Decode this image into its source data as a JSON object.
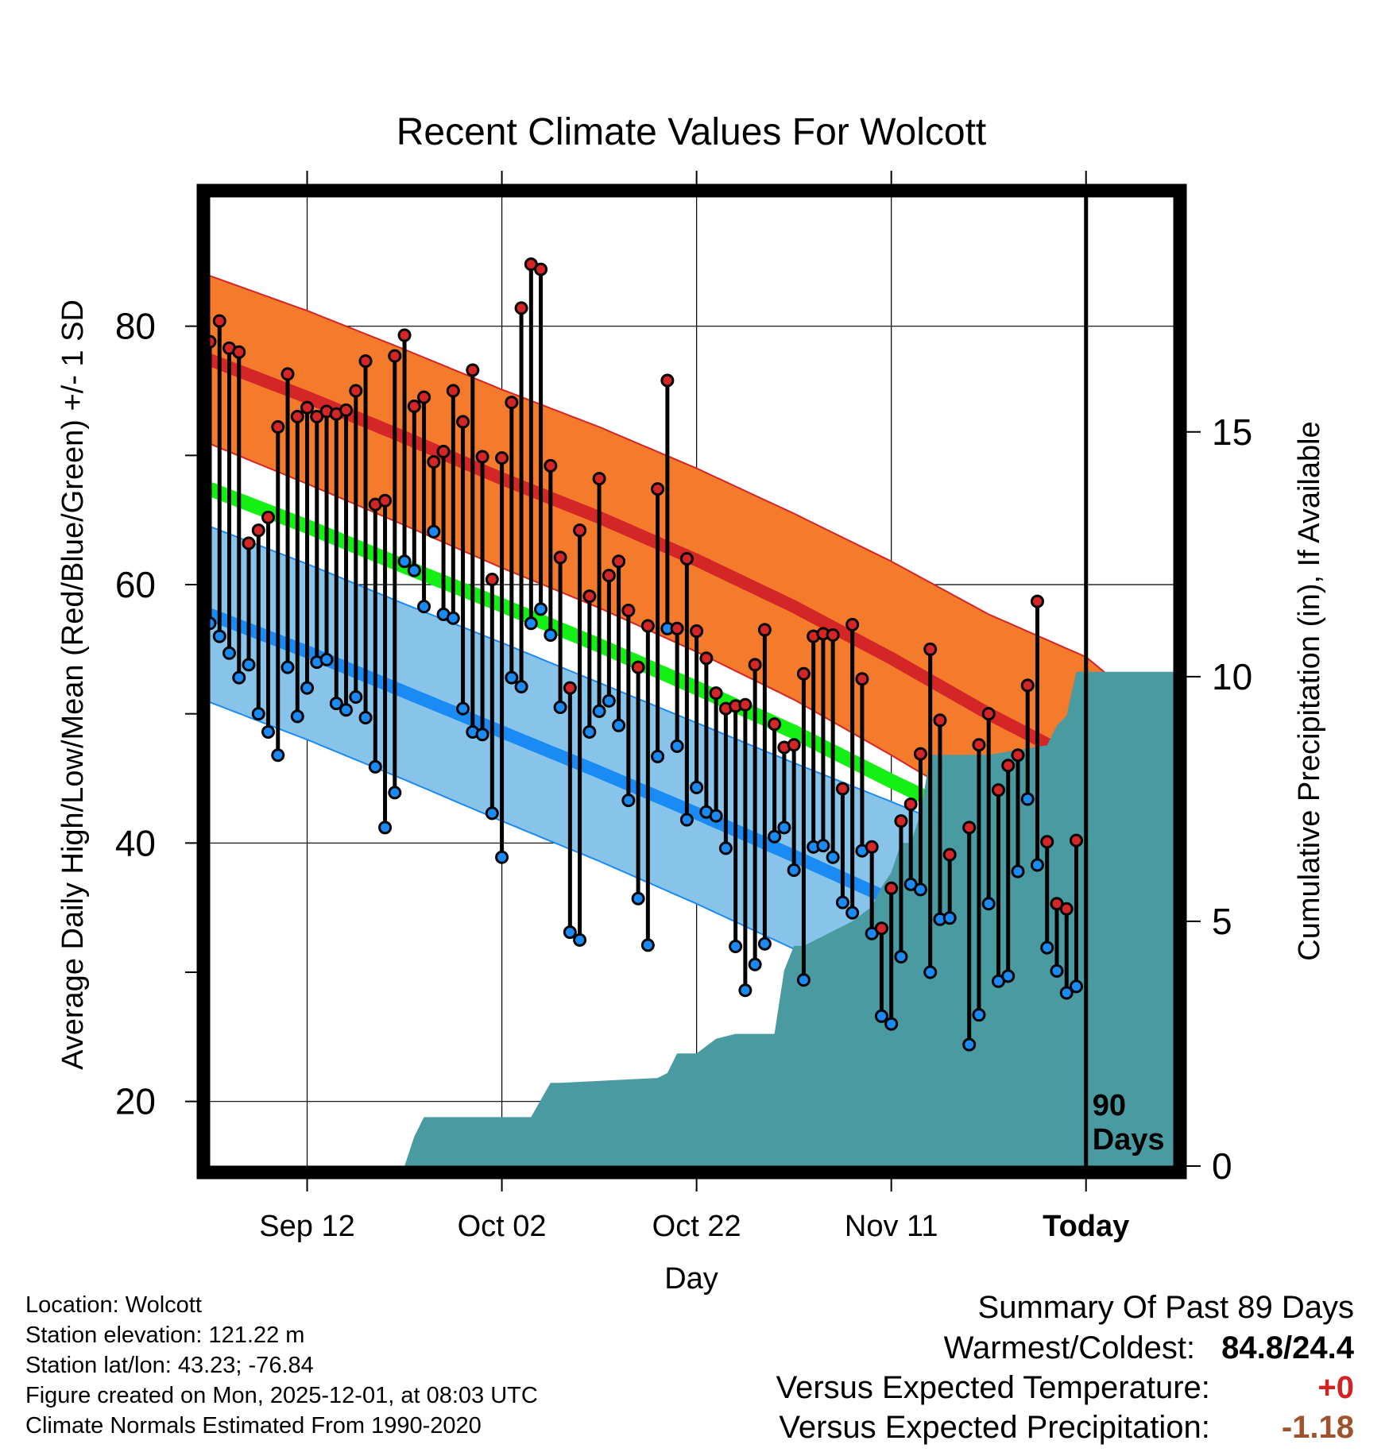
{
  "chart_data": {
    "type": "line",
    "title": "Recent Climate Values For Wolcott",
    "xlabel": "Day",
    "ylabel": "Average Daily High/Low/Mean (Red/Blue/Green) +/- 1 SD",
    "y2label": "Cumulative Precipitation (in), If Available",
    "xlim": [
      0,
      99
    ],
    "ylim": [
      15,
      90
    ],
    "y2lim": [
      0,
      19.8
    ],
    "x_ticks": [
      {
        "day": 10,
        "label": "Sep 12"
      },
      {
        "day": 30,
        "label": "Oct 02"
      },
      {
        "day": 50,
        "label": "Oct 22"
      },
      {
        "day": 70,
        "label": "Nov 11"
      },
      {
        "day": 90,
        "label": "Today"
      }
    ],
    "y_ticks": [
      20,
      40,
      60,
      80
    ],
    "y2_ticks": [
      0,
      5,
      10,
      15
    ],
    "today_day": 90,
    "today_label": [
      "90",
      "Days"
    ],
    "normal_days": [
      0,
      10,
      20,
      30,
      40,
      50,
      60,
      70,
      80,
      90,
      99
    ],
    "normal_high_mean": [
      77.4,
      74.5,
      71.4,
      68.2,
      65.2,
      61.9,
      58.3,
      54.3,
      50.0,
      46.1,
      38.6
    ],
    "normal_high_sd": [
      6.5,
      6.7,
      6.8,
      6.9,
      7.0,
      7.1,
      7.2,
      7.5,
      7.7,
      8.3,
      10.2
    ],
    "normal_low_mean": [
      57.7,
      54.8,
      51.7,
      48.6,
      45.5,
      42.3,
      39.0,
      35.6,
      32.2,
      28.6,
      25.0
    ],
    "normal_low_sd": [
      6.8,
      6.8,
      6.8,
      6.9,
      6.9,
      7.0,
      7.2,
      7.6,
      7.9,
      8.3,
      8.8
    ],
    "normal_mean": [
      67.4,
      64.5,
      61.4,
      58.4,
      55.3,
      52.0,
      48.6,
      44.8,
      41.2,
      37.3,
      31.6
    ],
    "days": [
      0,
      1,
      2,
      3,
      4,
      5,
      6,
      7,
      8,
      9,
      10,
      11,
      12,
      13,
      14,
      15,
      16,
      17,
      18,
      19,
      20,
      21,
      22,
      23,
      24,
      25,
      26,
      27,
      28,
      29,
      30,
      31,
      32,
      33,
      34,
      35,
      36,
      37,
      38,
      39,
      40,
      41,
      42,
      43,
      44,
      45,
      46,
      47,
      48,
      49,
      50,
      51,
      52,
      53,
      54,
      55,
      56,
      57,
      58,
      59,
      60,
      61,
      62,
      63,
      64,
      65,
      66,
      67,
      68,
      69,
      70,
      71,
      72,
      73,
      74,
      75,
      76,
      77,
      78,
      79,
      80,
      81,
      82,
      83,
      84,
      85,
      86,
      87,
      88,
      89,
      90
    ],
    "daily_high": [
      78.8,
      80.4,
      78.3,
      78.0,
      63.2,
      64.2,
      65.2,
      72.2,
      76.3,
      73.0,
      73.7,
      73.0,
      73.4,
      73.2,
      73.5,
      75.0,
      77.3,
      66.2,
      66.5,
      77.7,
      79.3,
      73.8,
      74.5,
      69.5,
      70.3,
      75.0,
      72.6,
      76.6,
      69.9,
      60.4,
      69.8,
      74.1,
      81.4,
      84.8,
      84.4,
      69.2,
      62.1,
      52.0,
      64.2,
      59.1,
      68.2,
      60.7,
      61.8,
      58.0,
      53.6,
      56.8,
      67.4,
      75.8,
      56.6,
      62.0,
      56.4,
      54.3,
      51.6,
      50.4,
      50.6,
      50.7,
      53.8,
      56.5,
      49.2,
      47.4,
      47.6,
      53.1,
      56.0,
      56.2,
      56.1,
      44.2,
      56.9,
      52.7,
      39.7,
      33.4,
      36.5,
      41.7,
      43.0,
      46.9,
      55.0,
      49.5,
      39.1,
      null,
      41.2,
      47.6,
      50.0,
      44.1,
      46.0,
      46.8,
      52.2,
      58.7,
      40.1,
      35.3,
      34.9,
      40.2,
      null
    ],
    "daily_low": [
      57.0,
      56.0,
      54.7,
      52.8,
      53.8,
      50.0,
      48.6,
      46.8,
      53.6,
      49.8,
      52.0,
      54.0,
      54.2,
      50.8,
      50.3,
      51.3,
      49.7,
      45.9,
      41.2,
      43.9,
      61.8,
      61.1,
      58.3,
      64.1,
      57.7,
      57.4,
      50.4,
      48.6,
      48.4,
      42.3,
      38.9,
      52.8,
      52.1,
      57.0,
      58.1,
      56.1,
      50.5,
      33.1,
      32.5,
      48.6,
      50.2,
      51.0,
      49.1,
      43.3,
      35.7,
      32.1,
      46.7,
      56.6,
      47.5,
      41.8,
      44.3,
      42.4,
      42.1,
      39.6,
      32.0,
      28.6,
      30.6,
      32.2,
      40.5,
      41.2,
      37.9,
      29.4,
      39.7,
      39.8,
      38.9,
      35.4,
      34.6,
      39.4,
      33.0,
      26.6,
      26.0,
      31.2,
      36.8,
      36.4,
      30.0,
      34.1,
      34.2,
      null,
      24.4,
      26.7,
      35.3,
      29.3,
      29.7,
      37.8,
      43.4,
      38.3,
      31.9,
      30.1,
      28.4,
      28.9,
      null
    ],
    "precip_days": [
      0,
      20,
      21,
      22,
      24,
      33,
      35,
      36,
      46,
      47,
      48,
      50,
      52,
      54,
      58,
      59,
      60,
      61,
      62,
      64,
      66,
      68,
      69,
      70,
      71,
      72,
      73,
      74,
      76,
      80,
      86,
      87,
      88,
      89,
      90,
      99
    ],
    "precip_cum": [
      0,
      0,
      0.6,
      1.0,
      1.0,
      1.0,
      1.7,
      1.7,
      1.8,
      1.9,
      2.3,
      2.3,
      2.6,
      2.7,
      2.7,
      4.0,
      4.5,
      4.5,
      4.6,
      4.8,
      5.0,
      5.3,
      5.7,
      6.0,
      6.6,
      6.6,
      7.2,
      8.4,
      8.4,
      8.4,
      8.6,
      9.0,
      9.2,
      10.1,
      10.1,
      10.1
    ],
    "colors": {
      "high_band": "#f47a2c",
      "high_line": "#d42527",
      "low_band": "#88c4e9",
      "low_line": "#1a8bf4",
      "mean_line": "#14f014",
      "overlap": "#971315",
      "precip": "#4a9aa2",
      "high_dot": "#d42527",
      "low_dot": "#1a8bf4"
    }
  },
  "info": {
    "location": "Location: Wolcott",
    "elevation": "Station elevation: 121.22 m",
    "latlon": "Station lat/lon: 43.23; -76.84",
    "created": "Figure created on Mon, 2025-12-01, at 08:03 UTC",
    "normals": "Climate Normals Estimated From 1990-2020"
  },
  "summary": {
    "title": "Summary Of Past 89 Days",
    "warmest_coldest_label": "Warmest/Coldest:",
    "warmest_coldest_value": "84.8/24.4",
    "vs_temp_label": "Versus Expected Temperature:",
    "vs_temp_value": "+0",
    "vs_precip_label": "Versus Expected Precipitation:",
    "vs_precip_value": "-1.18"
  }
}
